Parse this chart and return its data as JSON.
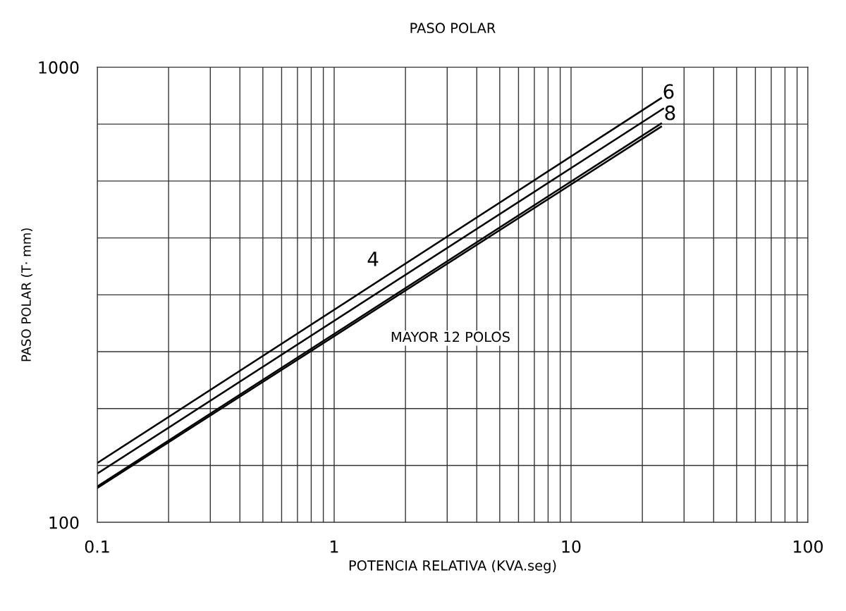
{
  "chart_data": {
    "type": "line",
    "title": "PASO POLAR",
    "xlabel": "POTENCIA RELATIVA (KVA.seg)",
    "ylabel": "PASO POLAR (T· mm)",
    "log": "xy",
    "grid": true,
    "marker": "none",
    "line_style": "solid",
    "xlim": [
      0.1,
      100
    ],
    "ylim": [
      100,
      1000
    ],
    "xticks": [
      0.1,
      {
        "value": 0.2,
        "label": null
      },
      {
        "value": 0.3,
        "label": null
      },
      {
        "value": 0.4,
        "label": null
      },
      {
        "value": 0.5,
        "label": null
      },
      {
        "value": 0.6,
        "label": null
      },
      {
        "value": 0.7,
        "label": null
      },
      {
        "value": 0.8,
        "label": null
      },
      {
        "value": 0.9,
        "label": null
      },
      1,
      {
        "value": 2,
        "label": null
      },
      {
        "value": 3,
        "label": null
      },
      {
        "value": 4,
        "label": null
      },
      {
        "value": 5,
        "label": null
      },
      {
        "value": 6,
        "label": null
      },
      {
        "value": 7,
        "label": null
      },
      {
        "value": 8,
        "label": null
      },
      {
        "value": 9,
        "label": null
      },
      10,
      {
        "value": 20,
        "label": null
      },
      {
        "value": 30,
        "label": null
      },
      {
        "value": 40,
        "label": null
      },
      {
        "value": 50,
        "label": null
      },
      {
        "value": 60,
        "label": null
      },
      {
        "value": 70,
        "label": null
      },
      {
        "value": 80,
        "label": null
      },
      {
        "value": 90,
        "label": null
      },
      100
    ],
    "yticks": [
      100,
      {
        "value": 133.35,
        "label": null
      },
      {
        "value": 177.83,
        "label": null
      },
      {
        "value": 237.14,
        "label": null
      },
      {
        "value": 316.23,
        "label": null
      },
      {
        "value": 421.7,
        "label": null
      },
      {
        "value": 562.34,
        "label": null
      },
      {
        "value": 749.89,
        "label": null
      },
      1000
    ],
    "series": [
      {
        "color": "#000000",
        "x": [
          0.1,
          24
        ],
        "values": [
          135,
          855
        ]
      },
      {
        "color": "#000000",
        "x": [
          0.1,
          24.5
        ],
        "values": [
          128,
          811
        ]
      },
      {
        "color": "#000000",
        "x": [
          0.1,
          24
        ],
        "values": [
          120,
          752
        ]
      },
      {
        "color": "#000000",
        "x": [
          0.1,
          24
        ],
        "values": [
          119,
          740
        ]
      }
    ],
    "annotations": [
      "4",
      "6",
      "8",
      "MAYOR 12 POLOS"
    ]
  }
}
